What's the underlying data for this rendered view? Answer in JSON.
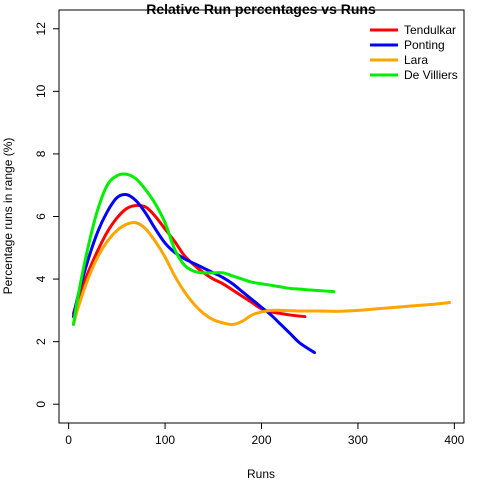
{
  "chart_data": {
    "type": "line",
    "title": "Relative Run percentages vs Runs",
    "xlabel": "Runs",
    "ylabel": "Percentage runs in range (%)",
    "xlim": [
      -10,
      410
    ],
    "ylim": [
      -0.6,
      12.6
    ],
    "xticks": [
      0,
      100,
      200,
      300,
      400
    ],
    "yticks": [
      0,
      2,
      4,
      6,
      8,
      10,
      12
    ],
    "grid": false,
    "legend_position": "top-right",
    "series": [
      {
        "name": "Tendulkar",
        "color": "#ff0000",
        "x": [
          5,
          10,
          20,
          30,
          40,
          50,
          60,
          70,
          80,
          90,
          100,
          110,
          120,
          130,
          140,
          150,
          160,
          170,
          180,
          190,
          200,
          210,
          220,
          230,
          245
        ],
        "y": [
          2.9,
          3.4,
          4.2,
          4.9,
          5.5,
          5.95,
          6.25,
          6.35,
          6.3,
          6.0,
          5.6,
          5.2,
          4.75,
          4.45,
          4.2,
          4.0,
          3.85,
          3.65,
          3.45,
          3.25,
          3.05,
          2.95,
          2.9,
          2.85,
          2.8
        ]
      },
      {
        "name": "Ponting",
        "color": "#0000ff",
        "x": [
          5,
          10,
          20,
          30,
          40,
          50,
          60,
          70,
          80,
          90,
          100,
          110,
          120,
          130,
          140,
          150,
          160,
          170,
          180,
          190,
          200,
          210,
          220,
          230,
          240,
          255
        ],
        "y": [
          2.8,
          3.5,
          4.6,
          5.5,
          6.15,
          6.6,
          6.7,
          6.5,
          6.1,
          5.6,
          5.15,
          4.85,
          4.65,
          4.5,
          4.35,
          4.2,
          4.05,
          3.85,
          3.6,
          3.35,
          3.1,
          2.85,
          2.55,
          2.25,
          1.95,
          1.65
        ]
      },
      {
        "name": "Lara",
        "color": "#ffa500",
        "x": [
          5,
          10,
          20,
          30,
          40,
          50,
          60,
          70,
          80,
          90,
          100,
          110,
          120,
          130,
          140,
          150,
          160,
          170,
          180,
          190,
          200,
          210,
          220,
          240,
          260,
          280,
          300,
          320,
          340,
          360,
          380,
          395
        ],
        "y": [
          2.55,
          3.1,
          4.0,
          4.7,
          5.2,
          5.55,
          5.75,
          5.8,
          5.6,
          5.2,
          4.7,
          4.1,
          3.6,
          3.2,
          2.9,
          2.7,
          2.6,
          2.55,
          2.65,
          2.85,
          2.95,
          3.0,
          3.0,
          2.98,
          2.98,
          2.97,
          3.0,
          3.05,
          3.1,
          3.15,
          3.2,
          3.25
        ]
      },
      {
        "name": "De Villiers",
        "color": "#00ee00",
        "x": [
          5,
          10,
          20,
          30,
          40,
          50,
          60,
          70,
          80,
          90,
          100,
          110,
          120,
          130,
          140,
          150,
          160,
          170,
          180,
          190,
          200,
          210,
          220,
          230,
          240,
          250,
          260,
          275
        ],
        "y": [
          2.55,
          3.5,
          5.0,
          6.2,
          7.0,
          7.3,
          7.35,
          7.2,
          6.85,
          6.4,
          5.8,
          4.95,
          4.45,
          4.25,
          4.2,
          4.2,
          4.2,
          4.1,
          4.0,
          3.9,
          3.85,
          3.8,
          3.75,
          3.7,
          3.68,
          3.65,
          3.63,
          3.6
        ]
      }
    ]
  }
}
